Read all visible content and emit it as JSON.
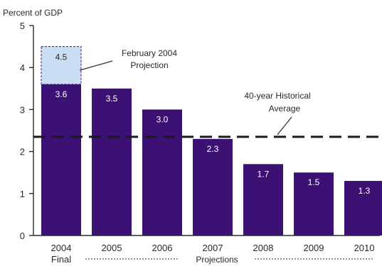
{
  "chart_data": {
    "type": "bar",
    "ylabel": "Percent of GDP",
    "ylim": [
      0,
      5
    ],
    "yticks": [
      "0",
      "1",
      "2",
      "3",
      "4",
      "5"
    ],
    "categories": [
      "2004",
      "2005",
      "2006",
      "2007",
      "2008",
      "2009",
      "2010"
    ],
    "category_sublabels": [
      "Final",
      "",
      "",
      "",
      "",
      "",
      ""
    ],
    "group_label": "Projections",
    "values": [
      3.6,
      3.5,
      3.0,
      2.3,
      1.7,
      1.5,
      1.3
    ],
    "value_labels": [
      "3.6",
      "3.5",
      "3.0",
      "2.3",
      "1.7",
      "1.5",
      "1.3"
    ],
    "projection_overlay": {
      "category": "2004",
      "value": 4.5,
      "value_label": "4.5",
      "label_line1": "February 2004",
      "label_line2": "Projection"
    },
    "reference_line": {
      "value": 2.35,
      "label_line1": "40-year Historical",
      "label_line2": "Average",
      "style": "dashed"
    },
    "colors": {
      "bar": "#3b1173",
      "overlay_fill": "#c9def3",
      "overlay_stroke": "#3b1173",
      "axis": "#2a2a2a",
      "reference": "#1a1a1a"
    },
    "grid": false
  }
}
